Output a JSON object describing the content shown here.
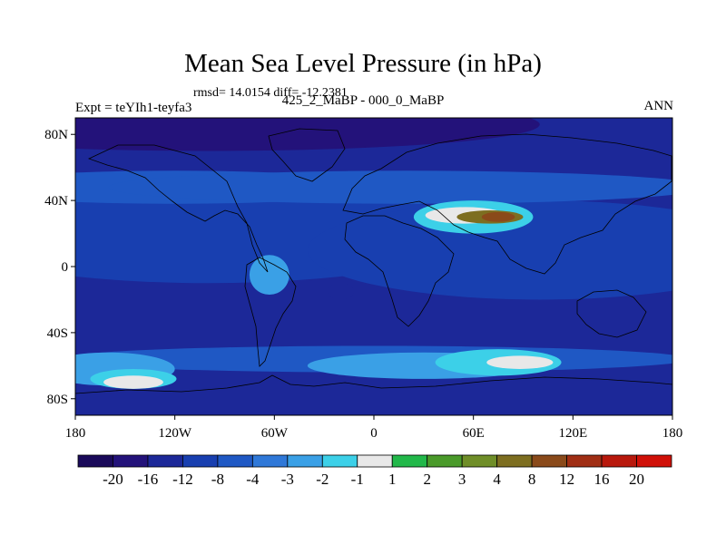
{
  "chart_data": {
    "type": "heatmap",
    "title": "Mean Sea Level Pressure (in hPa)",
    "stats_label": "rmsd= 14.0154 diff= -12.2381",
    "left_label": "Expt = teYIh1-teyfa3",
    "subtitle": "425_2_MaBP - 000_0_MaBP",
    "right_label": "ANN",
    "x_axis": {
      "range": [
        -180,
        180
      ],
      "ticks": [
        {
          "value": -180,
          "label": "180"
        },
        {
          "value": -120,
          "label": "120W"
        },
        {
          "value": -60,
          "label": "60W"
        },
        {
          "value": 0,
          "label": "0"
        },
        {
          "value": 60,
          "label": "60E"
        },
        {
          "value": 120,
          "label": "120E"
        },
        {
          "value": 180,
          "label": "180"
        }
      ]
    },
    "y_axis": {
      "range": [
        -90,
        90
      ],
      "ticks": [
        {
          "value": 80,
          "label": "80N"
        },
        {
          "value": 40,
          "label": "40N"
        },
        {
          "value": 0,
          "label": "0"
        },
        {
          "value": -40,
          "label": "40S"
        },
        {
          "value": -80,
          "label": "80S"
        }
      ]
    },
    "colorbar": {
      "colors": [
        "#1a0a5a",
        "#23127a",
        "#1c2898",
        "#183fb0",
        "#1f58c4",
        "#2f78d8",
        "#3aa0e6",
        "#3cd0e8",
        "#e8e8e8",
        "#22b84a",
        "#4a9a2a",
        "#6f8e28",
        "#7d6e20",
        "#8a4a1a",
        "#a02e14",
        "#b8180c",
        "#d01008"
      ],
      "labels": [
        "-20",
        "-16",
        "-12",
        "-8",
        "-4",
        "-3",
        "-2",
        "-1",
        "1",
        "2",
        "3",
        "4",
        "8",
        "12",
        "16",
        "20"
      ]
    },
    "anomaly_regions": [
      {
        "lon": -100,
        "lat": 86,
        "rlon": 200,
        "rlat": 16,
        "value": -18
      },
      {
        "lon": -100,
        "lat": 20,
        "rlon": 160,
        "rlat": 30,
        "value": -10
      },
      {
        "lon": 100,
        "lat": 10,
        "rlon": 140,
        "rlat": 30,
        "value": -10
      },
      {
        "lon": -120,
        "lat": 48,
        "rlon": 130,
        "rlat": 10,
        "value": -6
      },
      {
        "lon": 20,
        "lat": 48,
        "rlon": 180,
        "rlat": 10,
        "value": -6
      },
      {
        "lon": 0,
        "lat": -56,
        "rlon": 190,
        "rlat": 8,
        "value": -6
      },
      {
        "lon": -160,
        "lat": -62,
        "rlon": 40,
        "rlat": 10,
        "value": -3
      },
      {
        "lon": -145,
        "lat": -68,
        "rlon": 26,
        "rlat": 6,
        "value": -1.5
      },
      {
        "lon": -145,
        "lat": -70,
        "rlon": 18,
        "rlat": 4,
        "value": 0
      },
      {
        "lon": 30,
        "lat": -60,
        "rlon": 70,
        "rlat": 8,
        "value": -3
      },
      {
        "lon": 75,
        "lat": -58,
        "rlon": 38,
        "rlat": 8,
        "value": -2
      },
      {
        "lon": 88,
        "lat": -58,
        "rlon": 20,
        "rlat": 4,
        "value": 0
      },
      {
        "lon": 60,
        "lat": 30,
        "rlon": 36,
        "rlat": 10,
        "value": -2
      },
      {
        "lon": 55,
        "lat": 31,
        "rlon": 24,
        "rlat": 5,
        "value": -1
      },
      {
        "lon": 70,
        "lat": 30,
        "rlon": 20,
        "rlat": 4,
        "value": 4
      },
      {
        "lon": 75,
        "lat": 30,
        "rlon": 10,
        "rlat": 3,
        "value": 8
      },
      {
        "lon": -63,
        "lat": -5,
        "rlon": 12,
        "rlat": 12,
        "value": -3
      },
      {
        "lon": -20,
        "lat": -15,
        "rlon": 8,
        "rlat": 5,
        "value": -16
      }
    ]
  }
}
